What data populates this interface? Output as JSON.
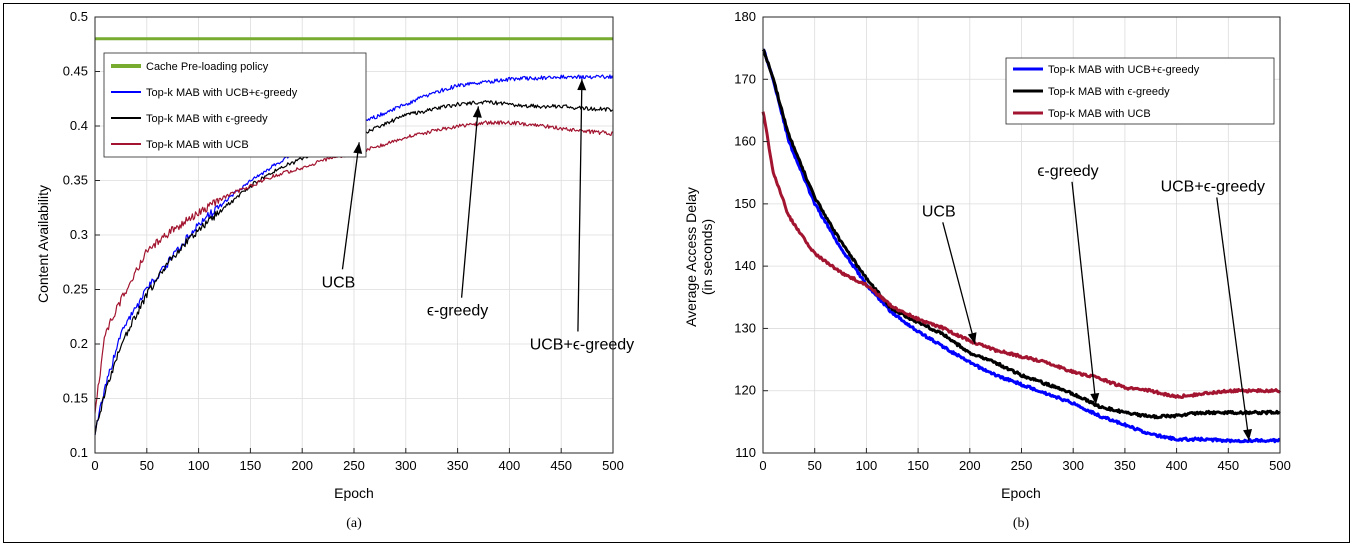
{
  "chart_data": [
    {
      "type": "line",
      "caption": "(a)",
      "xlabel": "Epoch",
      "ylabel": "Content Availability",
      "xlim": [
        0,
        500
      ],
      "ylim": [
        0.1,
        0.5
      ],
      "xticks": [
        0,
        50,
        100,
        150,
        200,
        250,
        300,
        350,
        400,
        450,
        500
      ],
      "yticks": [
        0.1,
        0.15,
        0.2,
        0.25,
        0.3,
        0.35,
        0.4,
        0.45,
        0.5
      ],
      "ytick_labels": [
        "0.1",
        "0.15",
        "0.2",
        "0.25",
        "0.3",
        "0.35",
        "0.4",
        "0.45",
        "0.5"
      ],
      "grid": true,
      "legend_position": "top-left",
      "series": [
        {
          "name": "Cache Pre-loading policy",
          "color": "#77ac30",
          "x": [
            0,
            500
          ],
          "y": [
            0.48,
            0.48
          ]
        },
        {
          "name": "Top-k MAB with UCB+ϵ-greedy",
          "color": "#0000ff",
          "x": [
            0,
            10,
            25,
            50,
            75,
            100,
            125,
            150,
            175,
            200,
            225,
            250,
            275,
            300,
            325,
            350,
            375,
            400,
            425,
            450,
            475,
            500
          ],
          "y": [
            0.12,
            0.16,
            0.21,
            0.25,
            0.28,
            0.31,
            0.33,
            0.35,
            0.365,
            0.38,
            0.39,
            0.4,
            0.41,
            0.42,
            0.43,
            0.437,
            0.44,
            0.443,
            0.444,
            0.445,
            0.445,
            0.445
          ]
        },
        {
          "name": "Top-k MAB with ϵ-greedy",
          "color": "#000000",
          "x": [
            0,
            10,
            25,
            50,
            75,
            100,
            125,
            150,
            175,
            200,
            225,
            250,
            275,
            300,
            325,
            350,
            375,
            400,
            425,
            450,
            475,
            500
          ],
          "y": [
            0.12,
            0.155,
            0.2,
            0.245,
            0.28,
            0.305,
            0.325,
            0.345,
            0.36,
            0.37,
            0.38,
            0.39,
            0.4,
            0.41,
            0.415,
            0.42,
            0.422,
            0.42,
            0.418,
            0.418,
            0.416,
            0.415
          ]
        },
        {
          "name": "Top-k MAB with UCB",
          "color": "#a2142f",
          "x": [
            0,
            10,
            25,
            50,
            75,
            100,
            125,
            150,
            175,
            200,
            225,
            250,
            275,
            300,
            325,
            350,
            375,
            400,
            425,
            450,
            475,
            500
          ],
          "y": [
            0.14,
            0.21,
            0.24,
            0.285,
            0.305,
            0.32,
            0.335,
            0.345,
            0.355,
            0.362,
            0.37,
            0.375,
            0.382,
            0.39,
            0.395,
            0.4,
            0.403,
            0.403,
            0.401,
            0.398,
            0.395,
            0.393
          ]
        }
      ],
      "annotations": [
        {
          "text": "UCB",
          "tx": 235,
          "ty": 0.252,
          "ax": 255,
          "ay": 0.385
        },
        {
          "text": "ϵ-greedy",
          "tx": 350,
          "ty": 0.226,
          "ax": 370,
          "ay": 0.418
        },
        {
          "text": "UCB+ϵ-greedy",
          "tx": 470,
          "ty": 0.195,
          "ax": 470,
          "ay": 0.443
        }
      ]
    },
    {
      "type": "line",
      "caption": "(b)",
      "xlabel": "Epoch",
      "ylabel": "Average Access Delay",
      "ylabel2": "(in seconds)",
      "xlim": [
        0,
        500
      ],
      "ylim": [
        110,
        180
      ],
      "xticks": [
        0,
        50,
        100,
        150,
        200,
        250,
        300,
        350,
        400,
        450,
        500
      ],
      "yticks": [
        110,
        120,
        130,
        140,
        150,
        160,
        170,
        180
      ],
      "ytick_labels": [
        "110",
        "120",
        "130",
        "140",
        "150",
        "160",
        "170",
        "180"
      ],
      "grid": true,
      "legend_position": "top-right",
      "series": [
        {
          "name": "Top-k MAB with UCB+ϵ-greedy",
          "color": "#0000ff",
          "x": [
            0,
            10,
            25,
            50,
            75,
            100,
            125,
            150,
            175,
            200,
            225,
            250,
            275,
            300,
            325,
            350,
            375,
            400,
            425,
            450,
            475,
            500
          ],
          "y": [
            175,
            170,
            160,
            150,
            143,
            137,
            132.5,
            129.5,
            127,
            124.5,
            122.5,
            121,
            119.5,
            118,
            116,
            114.5,
            113,
            112.2,
            112.2,
            112,
            112,
            112
          ]
        },
        {
          "name": "Top-k MAB with ϵ-greedy",
          "color": "#000000",
          "x": [
            0,
            10,
            25,
            50,
            75,
            100,
            125,
            150,
            175,
            200,
            225,
            250,
            275,
            300,
            325,
            350,
            375,
            400,
            425,
            450,
            475,
            500
          ],
          "y": [
            175,
            170,
            161,
            151,
            144,
            138,
            133,
            131,
            129,
            126,
            124.5,
            122.5,
            121,
            119.5,
            117.5,
            116.5,
            115.8,
            116,
            116.5,
            116.5,
            116.5,
            116.5
          ]
        },
        {
          "name": "Top-k MAB with UCB",
          "color": "#a2142f",
          "x": [
            0,
            10,
            25,
            50,
            75,
            100,
            125,
            150,
            175,
            200,
            225,
            250,
            275,
            300,
            325,
            350,
            375,
            400,
            425,
            450,
            475,
            500
          ],
          "y": [
            165,
            155,
            148,
            142,
            139,
            137,
            133.5,
            131.5,
            130,
            128,
            126.5,
            125.5,
            124.5,
            123,
            122,
            120.5,
            120,
            119,
            119.5,
            120,
            120,
            120
          ]
        }
      ],
      "annotations": [
        {
          "text": "UCB",
          "tx": 170,
          "ty": 148,
          "ax": 205,
          "ay": 127.5
        },
        {
          "text": "ϵ-greedy",
          "tx": 295,
          "ty": 154.5,
          "ax": 322,
          "ay": 117.8
        },
        {
          "text": "UCB+ϵ-greedy",
          "tx": 435,
          "ty": 152,
          "ax": 470,
          "ay": 112
        }
      ]
    }
  ]
}
